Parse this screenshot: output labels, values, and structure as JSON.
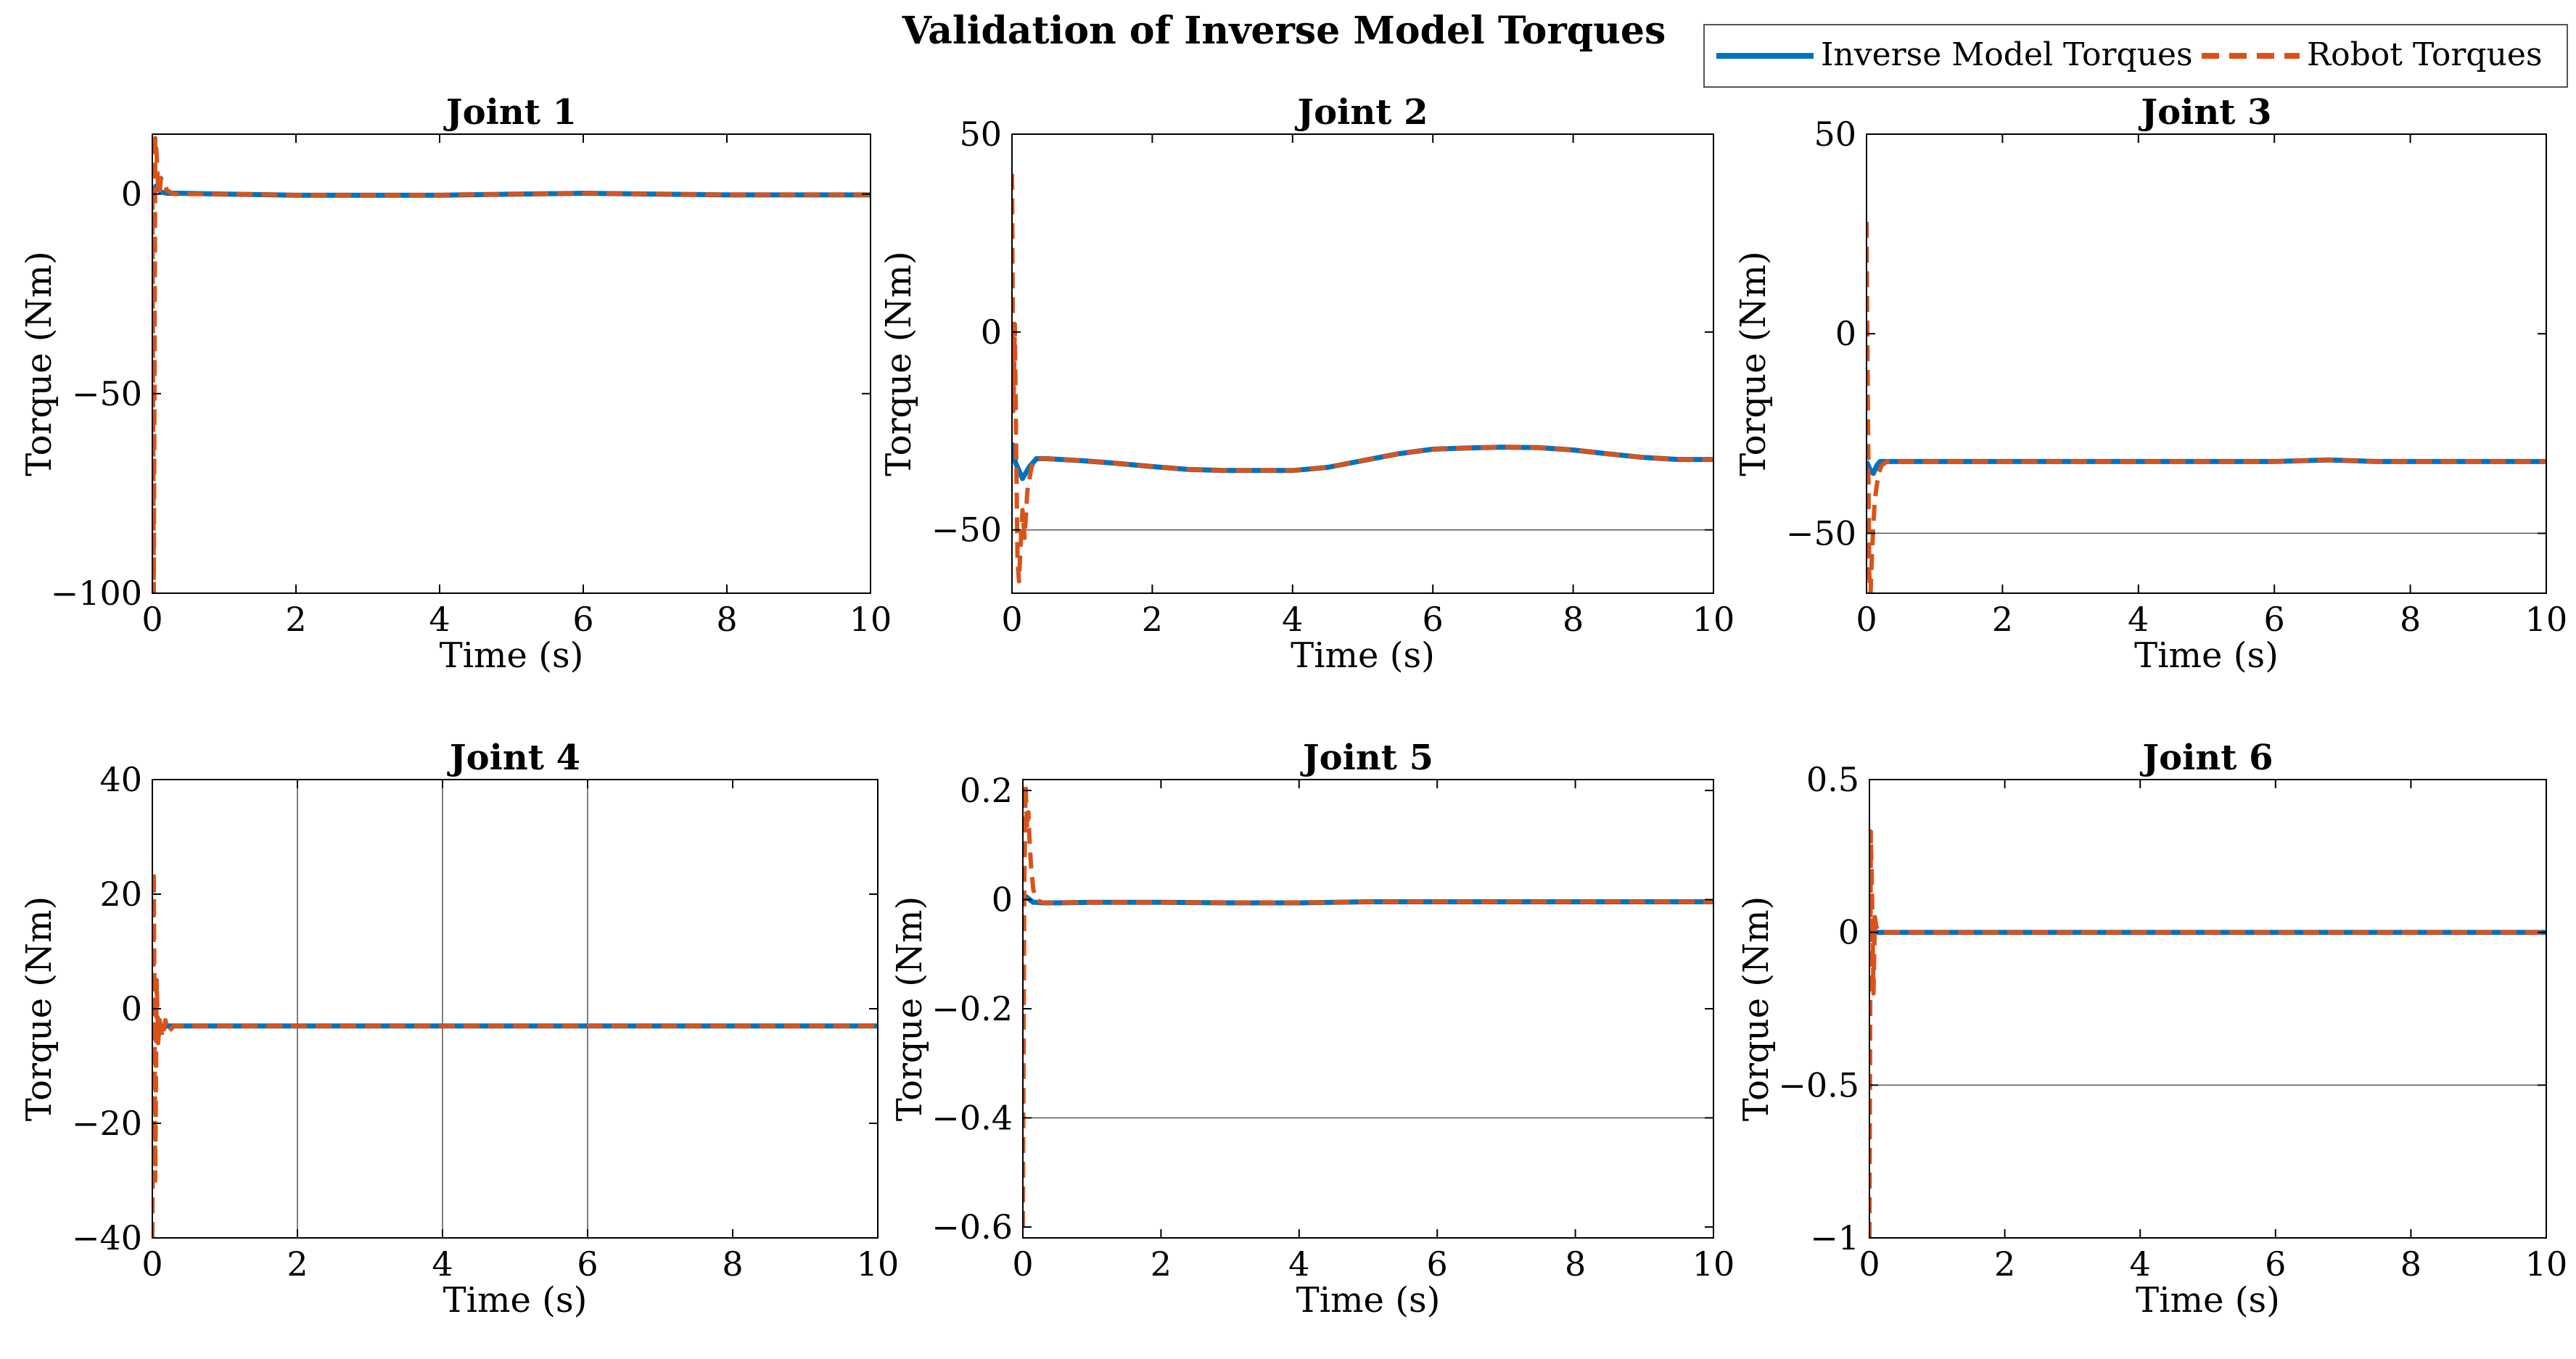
{
  "figure": {
    "title": "Validation of Inverse Model Torques"
  },
  "legend": {
    "entries": [
      {
        "label": "Inverse Model Torques",
        "color": "#0072BD",
        "style": "solid"
      },
      {
        "label": "Robot Torques",
        "color": "#D95319",
        "style": "dashed"
      }
    ],
    "placement": "top-right"
  },
  "chart_data": [
    {
      "type": "line",
      "title": "Joint 1",
      "xlabel": "Time (s)",
      "ylabel": "Torque (Nm)",
      "xlim": [
        0,
        10
      ],
      "ylim": [
        -100,
        15
      ],
      "xticks": [
        0,
        2,
        4,
        6,
        8,
        10
      ],
      "xtick_labels": [
        "0",
        "2",
        "4",
        "6",
        "8",
        "10"
      ],
      "yticks": [
        -100,
        -50,
        0
      ],
      "ytick_labels": [
        "−100",
        "−50",
        "0"
      ],
      "grid_x": [],
      "grid_y": [],
      "series": [
        {
          "name": "Inverse Model Torques",
          "x": [
            0,
            0.05,
            0.12,
            0.2,
            0.4,
            1,
            2,
            4,
            6,
            8,
            10
          ],
          "y": [
            0,
            2,
            0.5,
            0.2,
            0.2,
            0,
            -0.3,
            -0.3,
            0.2,
            -0.2,
            -0.2
          ]
        },
        {
          "name": "Robot Torques",
          "x": [
            0,
            0.02,
            0.04,
            0.06,
            0.08,
            0.1,
            0.12,
            0.16,
            0.2,
            0.3,
            1,
            2,
            4,
            6,
            8,
            10
          ],
          "y": [
            0,
            -100,
            14,
            10,
            2,
            0,
            4,
            3,
            1,
            0,
            0,
            -0.3,
            -0.3,
            0.2,
            -0.2,
            -0.2
          ]
        }
      ]
    },
    {
      "type": "line",
      "title": "Joint 2",
      "xlabel": "Time (s)",
      "ylabel": "Torque (Nm)",
      "xlim": [
        0,
        10
      ],
      "ylim": [
        -66,
        50
      ],
      "xticks": [
        0,
        2,
        4,
        6,
        8,
        10
      ],
      "xtick_labels": [
        "0",
        "2",
        "4",
        "6",
        "8",
        "10"
      ],
      "yticks": [
        -50,
        0,
        50
      ],
      "ytick_labels": [
        "−50",
        "0",
        "50"
      ],
      "grid_x": [],
      "grid_y": [
        -50
      ],
      "series": [
        {
          "name": "Inverse Model Torques",
          "x": [
            0,
            0.05,
            0.15,
            0.25,
            0.35,
            0.5,
            1,
            1.5,
            2,
            2.5,
            3,
            3.5,
            4,
            4.5,
            5,
            5.5,
            6,
            6.5,
            7,
            7.5,
            8,
            8.5,
            9,
            9.5,
            10
          ],
          "y": [
            -28,
            -33,
            -37,
            -34,
            -32,
            -32,
            -32.5,
            -33.2,
            -34,
            -34.7,
            -35,
            -35,
            -35,
            -34.2,
            -32.5,
            -30.8,
            -29.6,
            -29.3,
            -29.1,
            -29.2,
            -29.8,
            -30.8,
            -31.7,
            -32.2,
            -32.2
          ]
        },
        {
          "name": "Robot Torques",
          "x": [
            0,
            0.02,
            0.04,
            0.06,
            0.08,
            0.1,
            0.12,
            0.15,
            0.18,
            0.22,
            0.28,
            0.35,
            0.5,
            1,
            1.5,
            2,
            2.5,
            3,
            3.5,
            4,
            4.5,
            5,
            5.5,
            6,
            6.5,
            7,
            7.5,
            8,
            8.5,
            9,
            9.5,
            10
          ],
          "y": [
            40,
            -20,
            2,
            -30,
            -58,
            -63,
            -55,
            -45,
            -52,
            -40,
            -34,
            -32,
            -32,
            -32.5,
            -33.2,
            -34,
            -34.7,
            -35,
            -35,
            -35,
            -34.2,
            -32.5,
            -30.8,
            -29.6,
            -29.3,
            -29.1,
            -29.2,
            -29.8,
            -30.8,
            -31.7,
            -32.2,
            -32.2
          ]
        }
      ]
    },
    {
      "type": "line",
      "title": "Joint 3",
      "xlabel": "Time (s)",
      "ylabel": "Torque (Nm)",
      "xlim": [
        0,
        10
      ],
      "ylim": [
        -65,
        50
      ],
      "xticks": [
        0,
        2,
        4,
        6,
        8,
        10
      ],
      "xtick_labels": [
        "0",
        "2",
        "4",
        "6",
        "8",
        "10"
      ],
      "yticks": [
        -50,
        0,
        50
      ],
      "ytick_labels": [
        "−50",
        "0",
        "50"
      ],
      "grid_x": [],
      "grid_y": [
        -50
      ],
      "series": [
        {
          "name": "Inverse Model Torques",
          "x": [
            0,
            0.05,
            0.1,
            0.15,
            0.2,
            0.3,
            0.5,
            1,
            2,
            4,
            6,
            6.8,
            7.5,
            8,
            10
          ],
          "y": [
            -32,
            -34,
            -35,
            -33,
            -32,
            -32,
            -32,
            -32,
            -32,
            -32,
            -32,
            -31.6,
            -32,
            -32,
            -32
          ]
        },
        {
          "name": "Robot Torques",
          "x": [
            0,
            0.02,
            0.04,
            0.06,
            0.08,
            0.1,
            0.12,
            0.15,
            0.18,
            0.22,
            0.3,
            0.5,
            1,
            2,
            4,
            6,
            6.8,
            7.5,
            8,
            10
          ],
          "y": [
            28,
            -20,
            -60,
            -65,
            -55,
            -48,
            -42,
            -38,
            -35,
            -33,
            -32,
            -32,
            -32,
            -32,
            -32,
            -32,
            -31.6,
            -32,
            -32,
            -32
          ]
        }
      ]
    },
    {
      "type": "line",
      "title": "Joint 4",
      "xlabel": "Time (s)",
      "ylabel": "Torque (Nm)",
      "xlim": [
        0,
        10
      ],
      "ylim": [
        -40,
        40
      ],
      "xticks": [
        0,
        2,
        4,
        6,
        8,
        10
      ],
      "xtick_labels": [
        "0",
        "2",
        "4",
        "6",
        "8",
        "10"
      ],
      "yticks": [
        -40,
        -20,
        0,
        20,
        40
      ],
      "ytick_labels": [
        "−40",
        "−20",
        "0",
        "20",
        "40"
      ],
      "grid_x": [
        2,
        4,
        6
      ],
      "grid_y": [],
      "series": [
        {
          "name": "Inverse Model Torques",
          "x": [
            0,
            0.05,
            0.1,
            0.2,
            0.5,
            2,
            4,
            6,
            8,
            10
          ],
          "y": [
            -3,
            -5,
            -3.5,
            -3,
            -3,
            -3,
            -3,
            -3,
            -3,
            -3
          ]
        },
        {
          "name": "Robot Torques",
          "x": [
            0,
            0.02,
            0.04,
            0.06,
            0.08,
            0.1,
            0.14,
            0.18,
            0.22,
            0.3,
            0.5,
            2,
            4,
            6,
            8,
            10
          ],
          "y": [
            -40,
            24,
            -30,
            5,
            -6,
            -2,
            -5,
            -2,
            -4,
            -3,
            -3,
            -3,
            -3,
            -3,
            -3,
            -3
          ]
        }
      ]
    },
    {
      "type": "line",
      "title": "Joint 5",
      "xlabel": "Time (s)",
      "ylabel": "Torque (Nm)",
      "xlim": [
        0,
        10
      ],
      "ylim": [
        -0.62,
        0.22
      ],
      "xticks": [
        0,
        2,
        4,
        6,
        8,
        10
      ],
      "xtick_labels": [
        "0",
        "2",
        "4",
        "6",
        "8",
        "10"
      ],
      "yticks": [
        -0.6,
        -0.4,
        -0.2,
        0,
        0.2
      ],
      "ytick_labels": [
        "−0.6",
        "−0.4",
        "−0.2",
        "0",
        "0.2"
      ],
      "grid_x": [],
      "grid_y": [
        -0.4
      ],
      "series": [
        {
          "name": "Inverse Model Torques",
          "x": [
            0,
            0.05,
            0.1,
            0.15,
            0.2,
            0.3,
            0.5,
            1,
            2,
            3,
            4,
            5,
            6,
            7,
            8,
            9,
            10
          ],
          "y": [
            0,
            0.005,
            0,
            -0.005,
            -0.005,
            -0.006,
            -0.006,
            -0.005,
            -0.005,
            -0.006,
            -0.006,
            -0.004,
            -0.004,
            -0.004,
            -0.004,
            -0.004,
            -0.004
          ]
        },
        {
          "name": "Robot Torques",
          "x": [
            0,
            0.02,
            0.04,
            0.06,
            0.08,
            0.1,
            0.12,
            0.15,
            0.18,
            0.22,
            0.3,
            0.5,
            1,
            2,
            3,
            4,
            5,
            6,
            7,
            8,
            9,
            10
          ],
          "y": [
            -0.6,
            0.02,
            0.21,
            0.13,
            0.16,
            0.1,
            0.06,
            0.02,
            0.005,
            -0.002,
            -0.006,
            -0.006,
            -0.005,
            -0.005,
            -0.006,
            -0.006,
            -0.004,
            -0.004,
            -0.004,
            -0.004,
            -0.004,
            -0.004
          ]
        }
      ]
    },
    {
      "type": "line",
      "title": "Joint 6",
      "xlabel": "Time (s)",
      "ylabel": "Torque (Nm)",
      "xlim": [
        0,
        10
      ],
      "ylim": [
        -1,
        0.5
      ],
      "xticks": [
        0,
        2,
        4,
        6,
        8,
        10
      ],
      "xtick_labels": [
        "0",
        "2",
        "4",
        "6",
        "8",
        "10"
      ],
      "yticks": [
        -1,
        -0.5,
        0,
        0.5
      ],
      "ytick_labels": [
        "−1",
        "−0.5",
        "0",
        "0.5"
      ],
      "grid_x": [],
      "grid_y": [
        -0.5
      ],
      "series": [
        {
          "name": "Inverse Model Torques",
          "x": [
            0,
            0.05,
            0.1,
            0.2,
            0.5,
            2,
            4,
            6,
            8,
            10
          ],
          "y": [
            0,
            0.005,
            0,
            0,
            0,
            0,
            0,
            0,
            0,
            0
          ]
        },
        {
          "name": "Robot Torques",
          "x": [
            0,
            0.02,
            0.04,
            0.06,
            0.08,
            0.1,
            0.14,
            0.2,
            0.5,
            2,
            4,
            6,
            8,
            10
          ],
          "y": [
            -1,
            0.33,
            0.1,
            -0.2,
            0.05,
            0.02,
            0,
            0,
            0,
            0,
            0,
            0,
            0,
            0
          ]
        }
      ]
    }
  ]
}
